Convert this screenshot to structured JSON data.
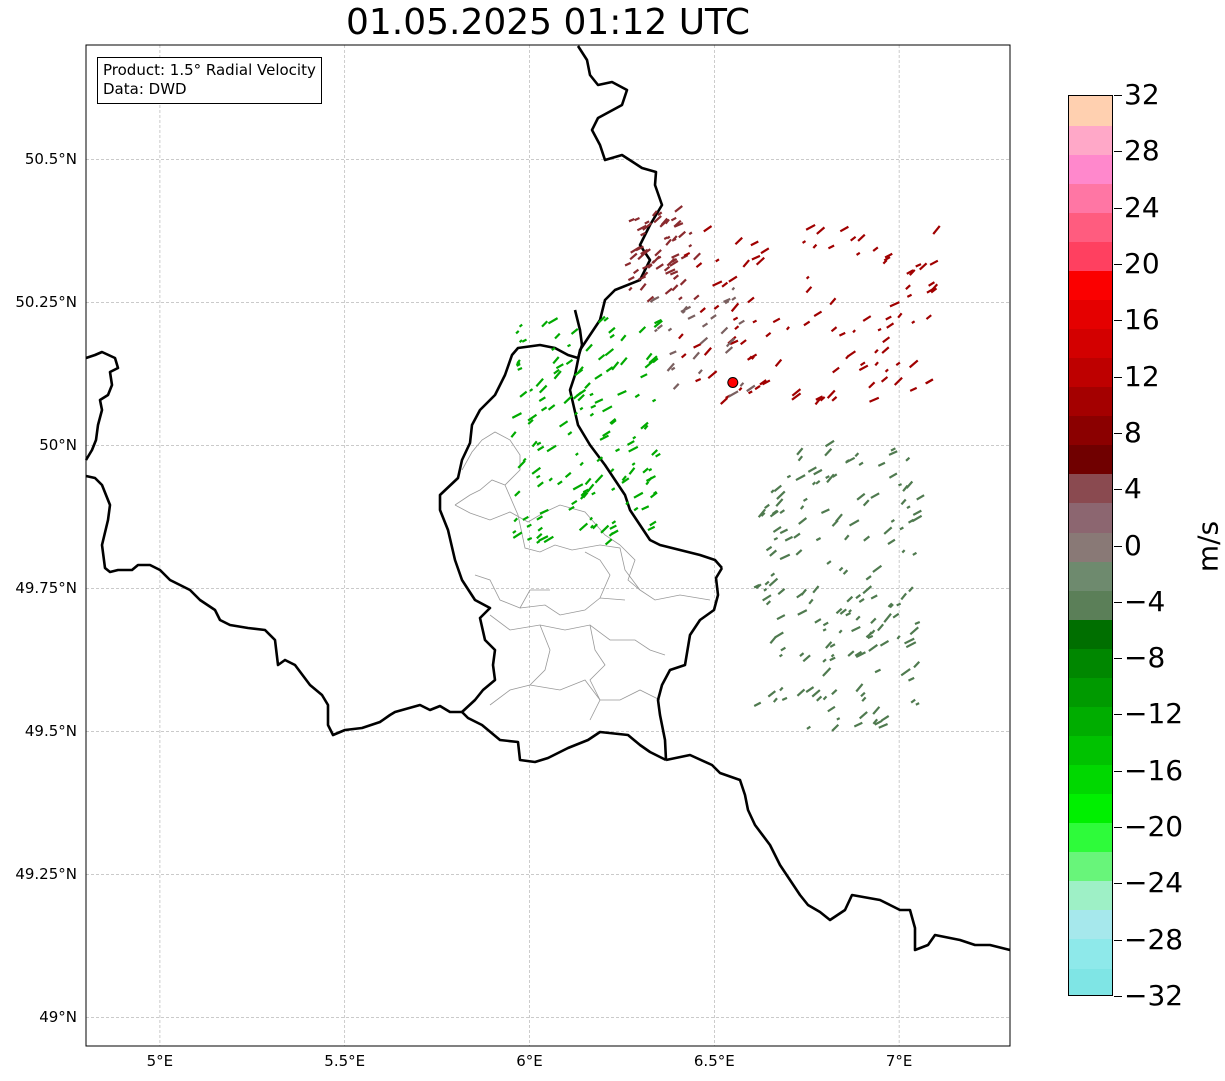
{
  "title": "01.05.2025 01:12 UTC",
  "infobox": {
    "product_line": "Product: 1.5° Radial Velocity",
    "data_line": "Data: DWD"
  },
  "map_extent": {
    "lon_min": 4.8,
    "lon_max": 7.3,
    "lat_min": 48.95,
    "lat_max": 50.7
  },
  "latitude_ticks": [
    {
      "value": 50.5,
      "label": "50.5°N"
    },
    {
      "value": 50.25,
      "label": "50.25°N"
    },
    {
      "value": 50.0,
      "label": "50°N"
    },
    {
      "value": 49.75,
      "label": "49.75°N"
    },
    {
      "value": 49.5,
      "label": "49.5°N"
    },
    {
      "value": 49.25,
      "label": "49.25°N"
    },
    {
      "value": 49.0,
      "label": "49°N"
    }
  ],
  "longitude_ticks": [
    {
      "value": 5.0,
      "label": "5°E"
    },
    {
      "value": 5.5,
      "label": "5.5°E"
    },
    {
      "value": 6.0,
      "label": "6°E"
    },
    {
      "value": 6.5,
      "label": "6.5°E"
    },
    {
      "value": 7.0,
      "label": "7°E"
    }
  ],
  "radar_site": {
    "lon": 6.55,
    "lat": 50.11,
    "color": "#ff0000"
  },
  "colorbar": {
    "unit": "m/s",
    "min": -32,
    "max": 32,
    "ticks": [
      32,
      28,
      24,
      20,
      16,
      12,
      8,
      4,
      0,
      -4,
      -8,
      -12,
      -16,
      -20,
      -24,
      -28,
      -32
    ],
    "tick_labels": [
      "32",
      "28",
      "24",
      "20",
      "16",
      "12",
      "8",
      "4",
      "0",
      "−4",
      "−8",
      "−12",
      "−16",
      "−20",
      "−24",
      "−28",
      "−32"
    ],
    "colors": [
      "#7fe5e5",
      "#8ee9ea",
      "#a6e8ec",
      "#9ef0c6",
      "#68f57a",
      "#2efb3a",
      "#00f000",
      "#00d800",
      "#00c200",
      "#00ad00",
      "#009a00",
      "#008700",
      "#006f00",
      "#5b7f58",
      "#6e8a6e",
      "#897976",
      "#8c6670",
      "#8a4a50",
      "#700000",
      "#8b0000",
      "#a40000",
      "#be0000",
      "#d30000",
      "#e50000",
      "#fb0000",
      "#ff4060",
      "#ff5c7f",
      "#ff76a4",
      "#ff88cc",
      "#ffa8c8",
      "#ffd0b0"
    ]
  },
  "regions": [
    {
      "name": "ring",
      "color": "#8a2a2e",
      "lon_min": 6.25,
      "lon_max": 6.45,
      "lat_min": 50.25,
      "lat_max": 50.41,
      "count": 60
    },
    {
      "name": "ne",
      "color": "#a00000",
      "lon_min": 6.4,
      "lon_max": 7.1,
      "lat_min": 50.07,
      "lat_max": 50.38,
      "count": 110
    },
    {
      "name": "w",
      "color": "#00aa00",
      "lon_min": 5.95,
      "lon_max": 6.35,
      "lat_min": 49.82,
      "lat_max": 50.23,
      "count": 150
    },
    {
      "name": "se",
      "color": "#4f7a4f",
      "lon_min": 6.6,
      "lon_max": 7.05,
      "lat_min": 49.5,
      "lat_max": 50.0,
      "count": 170
    },
    {
      "name": "n",
      "color": "#7a6060",
      "lon_min": 6.3,
      "lon_max": 6.6,
      "lat_min": 50.08,
      "lat_max": 50.28,
      "count": 30
    }
  ]
}
